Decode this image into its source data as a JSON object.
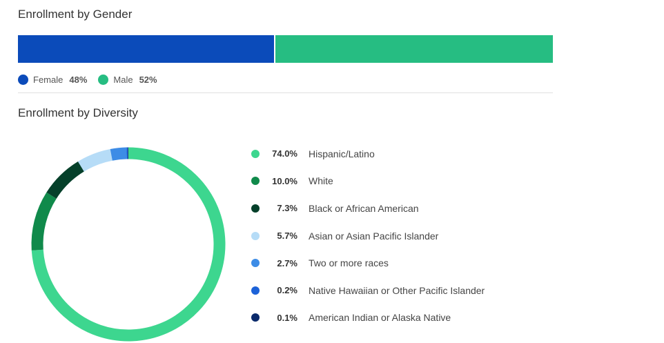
{
  "gender": {
    "title": "Enrollment by Gender",
    "items": [
      {
        "label": "Female",
        "pct_text": "48%",
        "value": 48,
        "color": "#0b4bba"
      },
      {
        "label": "Male",
        "pct_text": "52%",
        "value": 52,
        "color": "#26bd82"
      }
    ]
  },
  "diversity": {
    "title": "Enrollment by Diversity",
    "items": [
      {
        "label": "Hispanic/Latino",
        "pct_text": "74.0%",
        "value": 74.0,
        "color": "#3dd68f"
      },
      {
        "label": "White",
        "pct_text": "10.0%",
        "value": 10.0,
        "color": "#108a4b"
      },
      {
        "label": "Black or African American",
        "pct_text": "7.3%",
        "value": 7.3,
        "color": "#05402a"
      },
      {
        "label": "Asian or Asian Pacific Islander",
        "pct_text": "5.7%",
        "value": 5.7,
        "color": "#b6dcf7"
      },
      {
        "label": "Two or more races",
        "pct_text": "2.7%",
        "value": 2.7,
        "color": "#3d8ce6"
      },
      {
        "label": "Native Hawaiian or Other Pacific Islander",
        "pct_text": "0.2%",
        "value": 0.2,
        "color": "#1c62d8"
      },
      {
        "label": "American Indian or Alaska Native",
        "pct_text": "0.1%",
        "value": 0.1,
        "color": "#0a2a6b"
      }
    ]
  },
  "chart_data": [
    {
      "type": "bar",
      "title": "Enrollment by Gender",
      "orientation": "horizontal-stacked-100",
      "categories": [
        "Female",
        "Male"
      ],
      "values": [
        48,
        52
      ],
      "colors": [
        "#0b4bba",
        "#26bd82"
      ],
      "legend": "bottom"
    },
    {
      "type": "pie",
      "variant": "donut",
      "title": "Enrollment by Diversity",
      "categories": [
        "Hispanic/Latino",
        "White",
        "Black or African American",
        "Asian or Asian Pacific Islander",
        "Two or more races",
        "Native Hawaiian or Other Pacific Islander",
        "American Indian or Alaska Native"
      ],
      "values": [
        74.0,
        10.0,
        7.3,
        5.7,
        2.7,
        0.2,
        0.1
      ],
      "colors": [
        "#3dd68f",
        "#108a4b",
        "#05402a",
        "#b6dcf7",
        "#3d8ce6",
        "#1c62d8",
        "#0a2a6b"
      ],
      "legend": "right"
    }
  ]
}
